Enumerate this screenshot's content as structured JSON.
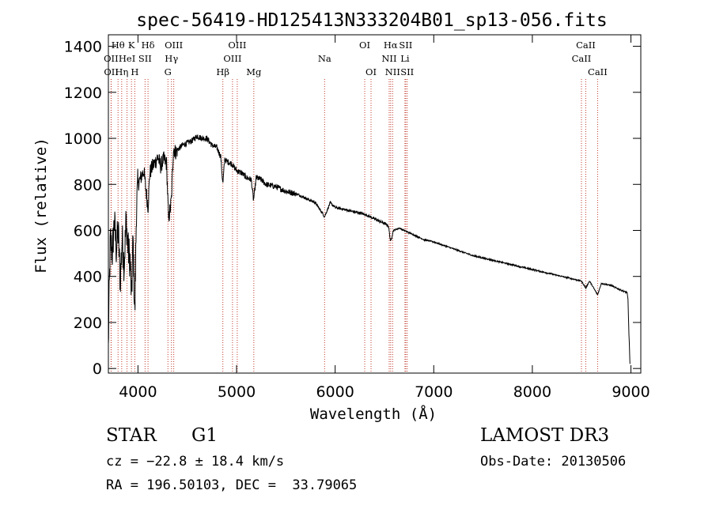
{
  "chart_data": {
    "type": "line",
    "title": "spec-56419-HD125413N333204B01_sp13-056.fits",
    "xlabel": "Wavelength (Å)",
    "ylabel": "Flux (relative)",
    "xlim": [
      3700,
      9100
    ],
    "ylim": [
      -20,
      1450
    ],
    "xticks": [
      4000,
      5000,
      6000,
      7000,
      8000,
      9000
    ],
    "yticks": [
      0,
      200,
      400,
      600,
      800,
      1000,
      1200,
      1400
    ],
    "series": [
      {
        "name": "spectrum",
        "x": [
          3700,
          3705,
          3720,
          3740,
          3760,
          3780,
          3800,
          3820,
          3840,
          3860,
          3880,
          3900,
          3920,
          3935,
          3950,
          3968,
          3985,
          4000,
          4030,
          4060,
          4080,
          4102,
          4120,
          4150,
          4180,
          4200,
          4230,
          4260,
          4290,
          4310,
          4330,
          4340,
          4360,
          4380,
          4400,
          4450,
          4500,
          4550,
          4600,
          4650,
          4700,
          4750,
          4800,
          4840,
          4861,
          4880,
          4900,
          4950,
          5000,
          5050,
          5100,
          5150,
          5172,
          5200,
          5250,
          5300,
          5400,
          5500,
          5600,
          5700,
          5800,
          5893,
          5950,
          6000,
          6100,
          6200,
          6300,
          6400,
          6500,
          6540,
          6563,
          6590,
          6650,
          6700,
          6800,
          6900,
          7000,
          7200,
          7400,
          7600,
          7800,
          8000,
          8200,
          8400,
          8498,
          8542,
          8580,
          8662,
          8700,
          8800,
          8900,
          8960,
          8970,
          8980,
          8990
        ],
        "y": [
          80,
          250,
          560,
          500,
          640,
          520,
          600,
          380,
          560,
          450,
          650,
          520,
          470,
          300,
          560,
          230,
          700,
          800,
          830,
          860,
          780,
          700,
          850,
          880,
          900,
          920,
          880,
          910,
          890,
          650,
          700,
          740,
          960,
          940,
          950,
          970,
          980,
          990,
          1010,
          1000,
          1000,
          970,
          960,
          920,
          800,
          910,
          900,
          890,
          860,
          850,
          830,
          820,
          730,
          830,
          820,
          800,
          790,
          770,
          760,
          740,
          720,
          660,
          720,
          700,
          690,
          680,
          670,
          650,
          630,
          620,
          550,
          600,
          610,
          600,
          580,
          560,
          550,
          520,
          490,
          470,
          450,
          430,
          410,
          390,
          380,
          350,
          380,
          320,
          370,
          360,
          340,
          330,
          300,
          150,
          20
        ]
      }
    ],
    "spectral_lines": [
      {
        "label": "OII",
        "x": 3727,
        "row": 1
      },
      {
        "label": "OII",
        "x": 3729,
        "row": 2
      },
      {
        "label": "Hθ",
        "x": 3798,
        "row": 0
      },
      {
        "label": "Hη",
        "x": 3835,
        "row": 2
      },
      {
        "label": "HeI",
        "x": 3889,
        "row": 1
      },
      {
        "label": "K",
        "x": 3934,
        "row": 0
      },
      {
        "label": "H",
        "x": 3968,
        "row": 2
      },
      {
        "label": "SII",
        "x": 4072,
        "row": 1
      },
      {
        "label": "Hδ",
        "x": 4102,
        "row": 0
      },
      {
        "label": "G",
        "x": 4304,
        "row": 2
      },
      {
        "label": "Hγ",
        "x": 4340,
        "row": 1
      },
      {
        "label": "OIII",
        "x": 4363,
        "row": 0
      },
      {
        "label": "Hβ",
        "x": 4861,
        "row": 2
      },
      {
        "label": "OIII",
        "x": 4959,
        "row": 1
      },
      {
        "label": "OIII",
        "x": 5007,
        "row": 0
      },
      {
        "label": "Mg",
        "x": 5175,
        "row": 2
      },
      {
        "label": "Na",
        "x": 5893,
        "row": 1
      },
      {
        "label": "OI",
        "x": 6300,
        "row": 0
      },
      {
        "label": "OI",
        "x": 6364,
        "row": 2
      },
      {
        "label": "NII",
        "x": 6548,
        "row": 1
      },
      {
        "label": "Hα",
        "x": 6563,
        "row": 0
      },
      {
        "label": "NII",
        "x": 6583,
        "row": 2
      },
      {
        "label": "Li",
        "x": 6708,
        "row": 1
      },
      {
        "label": "SII",
        "x": 6716,
        "row": 0
      },
      {
        "label": "SII",
        "x": 6731,
        "row": 2
      },
      {
        "label": "CaII",
        "x": 8498,
        "row": 1
      },
      {
        "label": "CaII",
        "x": 8542,
        "row": 0
      },
      {
        "label": "CaII",
        "x": 8662,
        "row": 2
      }
    ]
  },
  "info": {
    "object_type": "STAR",
    "subclass": "G1",
    "survey": "LAMOST DR3",
    "velocity": "cz = −22.8 ± 18.4 km/s",
    "obs_date": "Obs-Date: 20130506",
    "coords": "RA = 196.50103, DEC =  33.79065"
  }
}
